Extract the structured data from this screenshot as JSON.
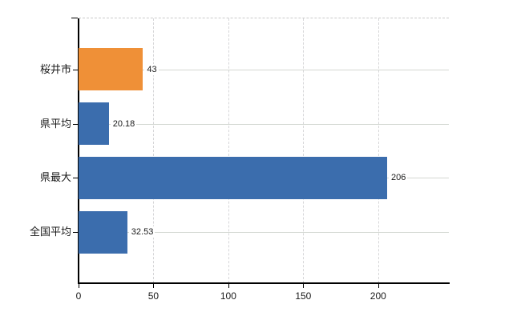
{
  "chart_data": {
    "type": "bar",
    "orientation": "horizontal",
    "title": "",
    "xlabel": "",
    "ylabel": "",
    "categories": [
      "桜井市",
      "県平均",
      "県最大",
      "全国平均"
    ],
    "values": [
      43,
      20.18,
      206,
      32.53
    ],
    "value_labels": [
      "43",
      "20.18",
      "206",
      "32.53"
    ],
    "bar_colors": [
      "#ef9037",
      "#3b6dad",
      "#3b6dad",
      "#3b6dad"
    ],
    "x_ticks": [
      0,
      50,
      100,
      150,
      200
    ],
    "x_tick_labels": [
      "0",
      "50",
      "100",
      "150",
      "200"
    ],
    "xlim": [
      0,
      247.2
    ],
    "grid": true,
    "legend": "none",
    "colors": {
      "highlight_bar": "#ef9037",
      "default_bar": "#3b6dad",
      "axis": "#000000",
      "gridline": "#d6d6d8",
      "row_gridline": "#d4d8d2",
      "plot_top_border": "#c9c9c9",
      "text": "#1a1a1a",
      "background": "#ffffff"
    }
  }
}
